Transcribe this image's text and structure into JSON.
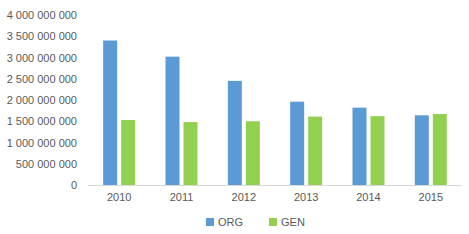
{
  "chart_data": {
    "type": "bar",
    "categories": [
      "2010",
      "2011",
      "2012",
      "2013",
      "2014",
      "2015"
    ],
    "series": [
      {
        "name": "ORG",
        "color": "#5b9bd5",
        "values": [
          3400000000,
          3020000000,
          2450000000,
          1960000000,
          1820000000,
          1640000000
        ]
      },
      {
        "name": "GEN",
        "color": "#92d050",
        "values": [
          1530000000,
          1480000000,
          1500000000,
          1610000000,
          1620000000,
          1670000000
        ]
      }
    ],
    "ylim": [
      0,
      4000000000
    ],
    "yticks": [
      0,
      {
        "value": 500000000,
        "label": "500 000 000"
      },
      {
        "value": 1000000000,
        "label": "1 000 000 000"
      },
      {
        "value": 1500000000,
        "label": "1 500 000 000"
      },
      {
        "value": 2000000000,
        "label": "2 000 000 000"
      },
      {
        "value": 2500000000,
        "label": "2 500 000 000"
      },
      {
        "value": 3000000000,
        "label": "3 000 000 000"
      },
      {
        "value": 3500000000,
        "label": "3 500 000 000"
      },
      {
        "value": 4000000000,
        "label": "4 000 000 000"
      }
    ],
    "grid": false,
    "legend": "bottom"
  }
}
